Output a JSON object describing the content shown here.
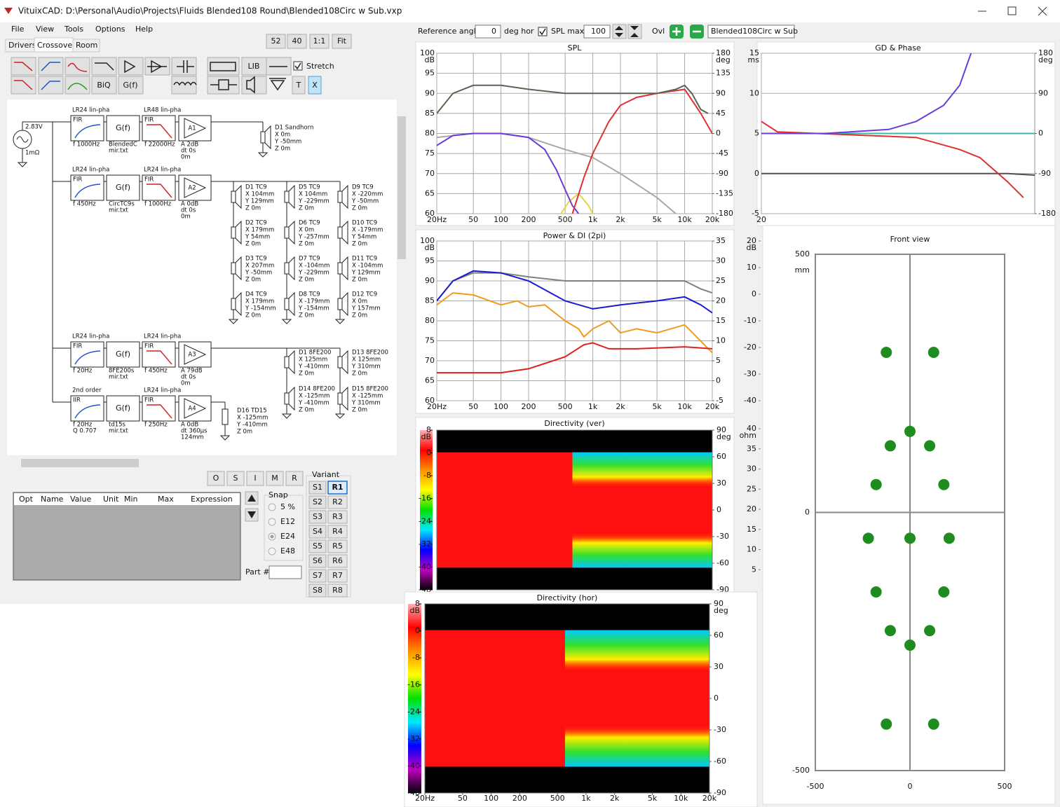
{
  "window": {
    "title": "VituixCAD: D:\\Personal\\Audio\\Projects\\Fluids Blended108 Round\\Blended108Circ w Sub.vxp"
  },
  "menu": [
    "File",
    "View",
    "Tools",
    "Options",
    "Help"
  ],
  "tabs": [
    "Drivers",
    "Crossover",
    "Room"
  ],
  "zoom_buttons": [
    "52",
    "40",
    "1:1",
    "Fit"
  ],
  "toolbar": {
    "lib": "LIB",
    "stretch": "Stretch",
    "biq": "BiQ",
    "gf": "G(f)",
    "t": "T",
    "x": "X"
  },
  "schematic": {
    "source": {
      "voltage": "2.83V",
      "impedance": "1mΩ"
    },
    "chains": [
      {
        "stages": [
          {
            "label": "LR24 lin-pha",
            "kind": "FIR",
            "params": [
              "f  1000Hz"
            ]
          },
          {
            "kind": "G(f)",
            "params": [
              "BlendedC",
              "mir.txt"
            ]
          },
          {
            "label": "LR48 lin-pha",
            "kind": "FIR",
            "params": [
              "f  22000Hz"
            ]
          },
          {
            "kind": "A1",
            "params": [
              "A  2dB",
              "dt 0s",
              "0m"
            ]
          }
        ],
        "drivers": [
          {
            "name": "D1 Sandhorn",
            "coords": [
              "X 0m",
              "Y -50mm",
              "Z 0m"
            ]
          }
        ]
      },
      {
        "stages": [
          {
            "label": "LR24 lin-pha",
            "kind": "FIR",
            "params": [
              "f  450Hz"
            ]
          },
          {
            "kind": "G(f)",
            "params": [
              "CircTC9s",
              "mir.txt"
            ]
          },
          {
            "label": "LR24 lin-pha",
            "kind": "FIR",
            "params": [
              "f  1000Hz"
            ]
          },
          {
            "kind": "A2",
            "params": [
              "A  0dB",
              "dt 0s",
              "0m"
            ]
          }
        ],
        "drivers": [
          {
            "name": "D1 TC9",
            "coords": [
              "X 104mm",
              "Y 129mm",
              "Z 0m"
            ]
          },
          {
            "name": "D2 TC9",
            "coords": [
              "X 179mm",
              "Y 54mm",
              "Z 0m"
            ]
          },
          {
            "name": "D3 TC9",
            "coords": [
              "X 207mm",
              "Y -50mm",
              "Z 0m"
            ]
          },
          {
            "name": "D4 TC9",
            "coords": [
              "X 179mm",
              "Y -154mm",
              "Z 0m"
            ]
          },
          {
            "name": "D5 TC9",
            "coords": [
              "X 104mm",
              "Y -229mm",
              "Z 0m"
            ]
          },
          {
            "name": "D6 TC9",
            "coords": [
              "X 0m",
              "Y -257mm",
              "Z 0m"
            ]
          },
          {
            "name": "D7 TC9",
            "coords": [
              "X -104mm",
              "Y -229mm",
              "Z 0m"
            ]
          },
          {
            "name": "D8 TC9",
            "coords": [
              "X -179mm",
              "Y -154mm",
              "Z 0m"
            ]
          },
          {
            "name": "D9 TC9",
            "coords": [
              "X -220mm",
              "Y -50mm",
              "Z 0m"
            ]
          },
          {
            "name": "D10 TC9",
            "coords": [
              "X -179mm",
              "Y 54mm",
              "Z 0m"
            ]
          },
          {
            "name": "D11 TC9",
            "coords": [
              "X -104mm",
              "Y 129mm",
              "Z 0m"
            ]
          },
          {
            "name": "D12 TC9",
            "coords": [
              "X 0m",
              "Y 157mm",
              "Z 0m"
            ]
          }
        ]
      },
      {
        "stages": [
          {
            "label": "LR24 lin-pha",
            "kind": "FIR",
            "params": [
              "f  20Hz"
            ]
          },
          {
            "kind": "G(f)",
            "params": [
              "8FE200s",
              "mir.txt"
            ]
          },
          {
            "label": "LR24 lin-pha",
            "kind": "FIR",
            "params": [
              "f  450Hz"
            ]
          },
          {
            "kind": "A3",
            "params": [
              "A  79dB",
              "dt 0s",
              "0m"
            ]
          }
        ],
        "drivers": [
          {
            "name": "D1 8FE200",
            "coords": [
              "X 125mm",
              "Y -410mm",
              "Z 0m"
            ]
          },
          {
            "name": "D13 8FE200",
            "coords": [
              "X 125mm",
              "Y 310mm",
              "Z 0m"
            ]
          },
          {
            "name": "D14 8FE200",
            "coords": [
              "X -125mm",
              "Y -410mm",
              "Z 0m"
            ]
          },
          {
            "name": "D15 8FE200",
            "coords": [
              "X -125mm",
              "Y 310mm",
              "Z 0m"
            ]
          }
        ]
      },
      {
        "stages": [
          {
            "label": "2nd order",
            "kind": "IIR",
            "params": [
              "f  20Hz",
              "Q  0.707"
            ]
          },
          {
            "kind": "G(f)",
            "params": [
              "td15s",
              "mir.txt"
            ]
          },
          {
            "label": "LR24 lin-pha",
            "kind": "FIR",
            "params": [
              "f  250Hz"
            ]
          },
          {
            "kind": "A4",
            "params": [
              "A  0dB",
              "dt 360µs",
              "124mm"
            ]
          }
        ],
        "drivers": [
          {
            "name": "D16 TD15",
            "coords": [
              "X -125mm",
              "Y -410mm",
              "Z 0m"
            ]
          }
        ]
      }
    ]
  },
  "optimizer": {
    "buttons": [
      "O",
      "S",
      "I",
      "M",
      "R"
    ],
    "columns": [
      "Opt",
      "Name",
      "Value",
      "Unit",
      "Min",
      "Max",
      "Expression"
    ],
    "snap_title": "Snap",
    "snap_options": [
      "5 %",
      "E12",
      "E24",
      "E48"
    ],
    "part_label": "Part #"
  },
  "variant": {
    "title": "Variant",
    "s": [
      "S1",
      "S2",
      "S3",
      "S4",
      "S5",
      "S6",
      "S7",
      "S8"
    ],
    "r": [
      "R1",
      "R2",
      "R3",
      "R4",
      "R5",
      "R6",
      "R7",
      "R8"
    ]
  },
  "toolbar_right": {
    "reference_angle_label": "Reference angle",
    "reference_angle": 0,
    "deg_hor": "deg hor",
    "spl_max_label": "SPL max",
    "spl_max": 100,
    "ovl": "Ovl",
    "project": "Blended108Circ w Sub"
  },
  "chart_data": [
    {
      "type": "line",
      "title": "SPL",
      "xscale": "log",
      "xlim": [
        20,
        20000
      ],
      "grid": true,
      "xticks": [
        {
          "value": 20,
          "label": "20Hz"
        },
        50,
        100,
        200,
        500,
        {
          "value": 1000,
          "label": "1k"
        },
        {
          "value": 2000,
          "label": "2k"
        },
        {
          "value": 5000,
          "label": "5k"
        },
        {
          "value": 10000,
          "label": "10k"
        },
        {
          "value": 20000,
          "label": "20k"
        }
      ],
      "ylim": [
        60,
        100
      ],
      "yticks": [
        60,
        65,
        70,
        75,
        80,
        85,
        90,
        95,
        100
      ],
      "ylabel": "dB",
      "y2lim": [
        -180,
        180
      ],
      "y2ticks": [
        -180,
        -135,
        -90,
        -45,
        0,
        45,
        90,
        135,
        180
      ],
      "y2label": "deg",
      "series": [
        {
          "color": "#a8a8a8",
          "x": [
            20,
            50,
            100,
            200,
            500,
            1000,
            2000,
            5000,
            8000
          ],
          "values": [
            79,
            80,
            80,
            79,
            76,
            74,
            70,
            64,
            60
          ]
        },
        {
          "color": "#e8d44a",
          "x": [
            450,
            550,
            700,
            900,
            1000
          ],
          "values": [
            60,
            63,
            65,
            62,
            60
          ]
        },
        {
          "color": "#6a3cd8",
          "x": [
            20,
            30,
            50,
            100,
            200,
            300,
            400,
            500,
            600,
            700
          ],
          "values": [
            77,
            79.5,
            80,
            80,
            79,
            76,
            71,
            66,
            62,
            60
          ]
        },
        {
          "color": "#e03030",
          "x": [
            600,
            800,
            1000,
            1500,
            2000,
            3000,
            5000,
            10000,
            15000,
            20000
          ],
          "values": [
            60,
            69,
            75,
            83,
            87,
            89,
            90,
            91,
            85,
            80
          ]
        },
        {
          "color": "#5a6450",
          "x": [
            20,
            30,
            50,
            100,
            200,
            500,
            1000,
            2000,
            5000,
            8000,
            10000,
            12000,
            15000,
            18000
          ],
          "values": [
            85,
            90,
            92,
            92,
            91,
            90,
            90,
            90,
            90,
            91,
            92,
            90,
            86,
            85
          ]
        }
      ]
    },
    {
      "type": "line",
      "title": "GD & Phase",
      "xscale": "log",
      "xlim": [
        20,
        20000
      ],
      "grid": true,
      "xticks": [
        20
      ],
      "ylim": [
        -5,
        15
      ],
      "yticks": [
        -5,
        0,
        5,
        10,
        15
      ],
      "ylabel": "ms",
      "y2lim": [
        -180,
        180
      ],
      "y2ticks": [
        -180,
        -90,
        0,
        90,
        180
      ],
      "y2label": "deg",
      "series": [
        {
          "color": "#3cb8a8",
          "axis": "y2",
          "x": [
            20,
            20000
          ],
          "values": [
            0,
            0
          ]
        },
        {
          "color": "#505050",
          "x": [
            20,
            1000,
            10000,
            20000
          ],
          "values": [
            0,
            0,
            0,
            -0.2
          ]
        },
        {
          "color": "#e03030",
          "x": [
            20,
            30,
            1000,
            3000,
            5000,
            10000,
            15000
          ],
          "values": [
            6.5,
            5.2,
            4.5,
            3,
            2,
            -1,
            -3
          ]
        },
        {
          "color": "#6a3cd8",
          "x": [
            20,
            100,
            500,
            1000,
            2000,
            3000,
            4000
          ],
          "values": [
            5,
            5,
            5.5,
            6.5,
            8.5,
            11,
            15
          ]
        }
      ]
    },
    {
      "type": "line",
      "title": "Power & DI (2pi)",
      "xscale": "log",
      "xlim": [
        20,
        20000
      ],
      "grid": true,
      "xticks": [
        {
          "value": 20,
          "label": "20Hz"
        },
        50,
        100,
        200,
        500,
        {
          "value": 1000,
          "label": "1k"
        },
        {
          "value": 2000,
          "label": "2k"
        },
        {
          "value": 5000,
          "label": "5k"
        },
        {
          "value": 10000,
          "label": "10k"
        },
        {
          "value": 20000,
          "label": "20k"
        }
      ],
      "ylim": [
        60,
        100
      ],
      "yticks": [
        60,
        65,
        70,
        75,
        80,
        85,
        90,
        95,
        100
      ],
      "ylabel": "dB",
      "y2lim": [
        -5,
        35
      ],
      "y2ticks": [
        -5,
        0,
        5,
        10,
        15,
        20,
        25,
        30,
        35
      ],
      "series": [
        {
          "color": "#808080",
          "x": [
            20,
            30,
            50,
            100,
            200,
            500,
            1000,
            2000,
            5000,
            10000,
            15000,
            20000
          ],
          "values": [
            85,
            90,
            92,
            92,
            91,
            90,
            90,
            90,
            90,
            90,
            88,
            87
          ]
        },
        {
          "color": "#f29a20",
          "x": [
            20,
            30,
            50,
            100,
            150,
            200,
            300,
            500,
            700,
            800,
            1000,
            1500,
            2000,
            3000,
            5000,
            10000,
            20000
          ],
          "values": [
            84,
            87,
            86.5,
            84,
            85,
            83.5,
            84,
            80,
            78,
            76,
            78,
            80,
            77,
            78,
            77,
            79,
            72
          ]
        },
        {
          "color": "#1a1ad0",
          "x": [
            20,
            30,
            50,
            100,
            200,
            500,
            1000,
            2000,
            5000,
            10000,
            15000,
            20000
          ],
          "values": [
            85,
            90,
            92.5,
            92,
            90,
            85,
            83,
            84,
            85,
            86,
            84,
            82
          ]
        },
        {
          "color": "#e02020",
          "x": [
            20,
            100,
            200,
            500,
            800,
            1000,
            1500,
            3000,
            10000,
            20000
          ],
          "values": [
            67,
            67,
            68,
            71,
            74,
            74.5,
            73,
            73,
            73.5,
            73
          ]
        }
      ]
    },
    {
      "type": "axis-stub",
      "ylim": [
        -40,
        20
      ],
      "yticks": [
        -40,
        -30,
        -20,
        -10,
        0,
        10,
        20
      ],
      "ylabel": "dB"
    },
    {
      "type": "axis-stub",
      "ylim": [
        0,
        40
      ],
      "yticks": [
        5,
        10,
        15,
        20,
        25,
        30,
        35,
        40
      ],
      "ylabel": "ohm",
      "xticks": [
        20
      ]
    },
    {
      "type": "heatmap",
      "title": "Directivity (ver)",
      "xscale": "log",
      "xlim": [
        20,
        20000
      ],
      "ylim": [
        -90,
        90
      ],
      "yticks": [
        -90,
        -60,
        -30,
        0,
        30,
        60,
        90
      ],
      "ylabel": "deg",
      "clim": [
        -48,
        8
      ],
      "cticks": [
        -48,
        -40,
        -32,
        -24,
        -16,
        -8,
        0,
        8
      ],
      "clabel": "dB",
      "colormap": [
        "#ffb0b0",
        "#ff0000",
        "#ff9000",
        "#ffff00",
        "#00e000",
        "#00e8ff",
        "#0000ff",
        "#c000c0",
        "#000000"
      ]
    },
    {
      "type": "heatmap",
      "title": "Directivity (hor)",
      "xscale": "log",
      "xlim": [
        20,
        20000
      ],
      "xticks": [
        {
          "value": 20,
          "label": "20Hz"
        },
        50,
        100,
        200,
        500,
        {
          "value": 1000,
          "label": "1k"
        },
        {
          "value": 2000,
          "label": "2k"
        },
        {
          "value": 5000,
          "label": "5k"
        },
        {
          "value": 10000,
          "label": "10k"
        },
        {
          "value": 20000,
          "label": "20k"
        }
      ],
      "ylim": [
        -90,
        90
      ],
      "yticks": [
        -90,
        -60,
        -30,
        0,
        30,
        60,
        90
      ],
      "ylabel": "deg",
      "clim": [
        -48,
        8
      ],
      "cticks": [
        -48,
        -40,
        -32,
        -24,
        -16,
        -8,
        0,
        8
      ],
      "clabel": "dB",
      "colormap": [
        "#ffb0b0",
        "#ff0000",
        "#ff9000",
        "#ffff00",
        "#00e000",
        "#00e8ff",
        "#0000ff",
        "#c000c0",
        "#000000"
      ]
    },
    {
      "type": "scatter",
      "title": "Front view",
      "xlim": [
        -500,
        500
      ],
      "ylim": [
        -500,
        500
      ],
      "xticks": [
        -500,
        0,
        500
      ],
      "yticks": [
        -500,
        0,
        500
      ],
      "ylabel": "mm",
      "color": "#1e8c1e",
      "x": [
        -125,
        125,
        0,
        -104,
        104,
        -179,
        179,
        -220,
        0,
        207,
        -179,
        179,
        -104,
        104,
        0,
        -125,
        125
      ],
      "values": [
        310,
        310,
        157,
        129,
        129,
        54,
        54,
        -50,
        -50,
        -50,
        -154,
        -154,
        -229,
        -229,
        -257,
        -410,
        -410
      ]
    }
  ]
}
